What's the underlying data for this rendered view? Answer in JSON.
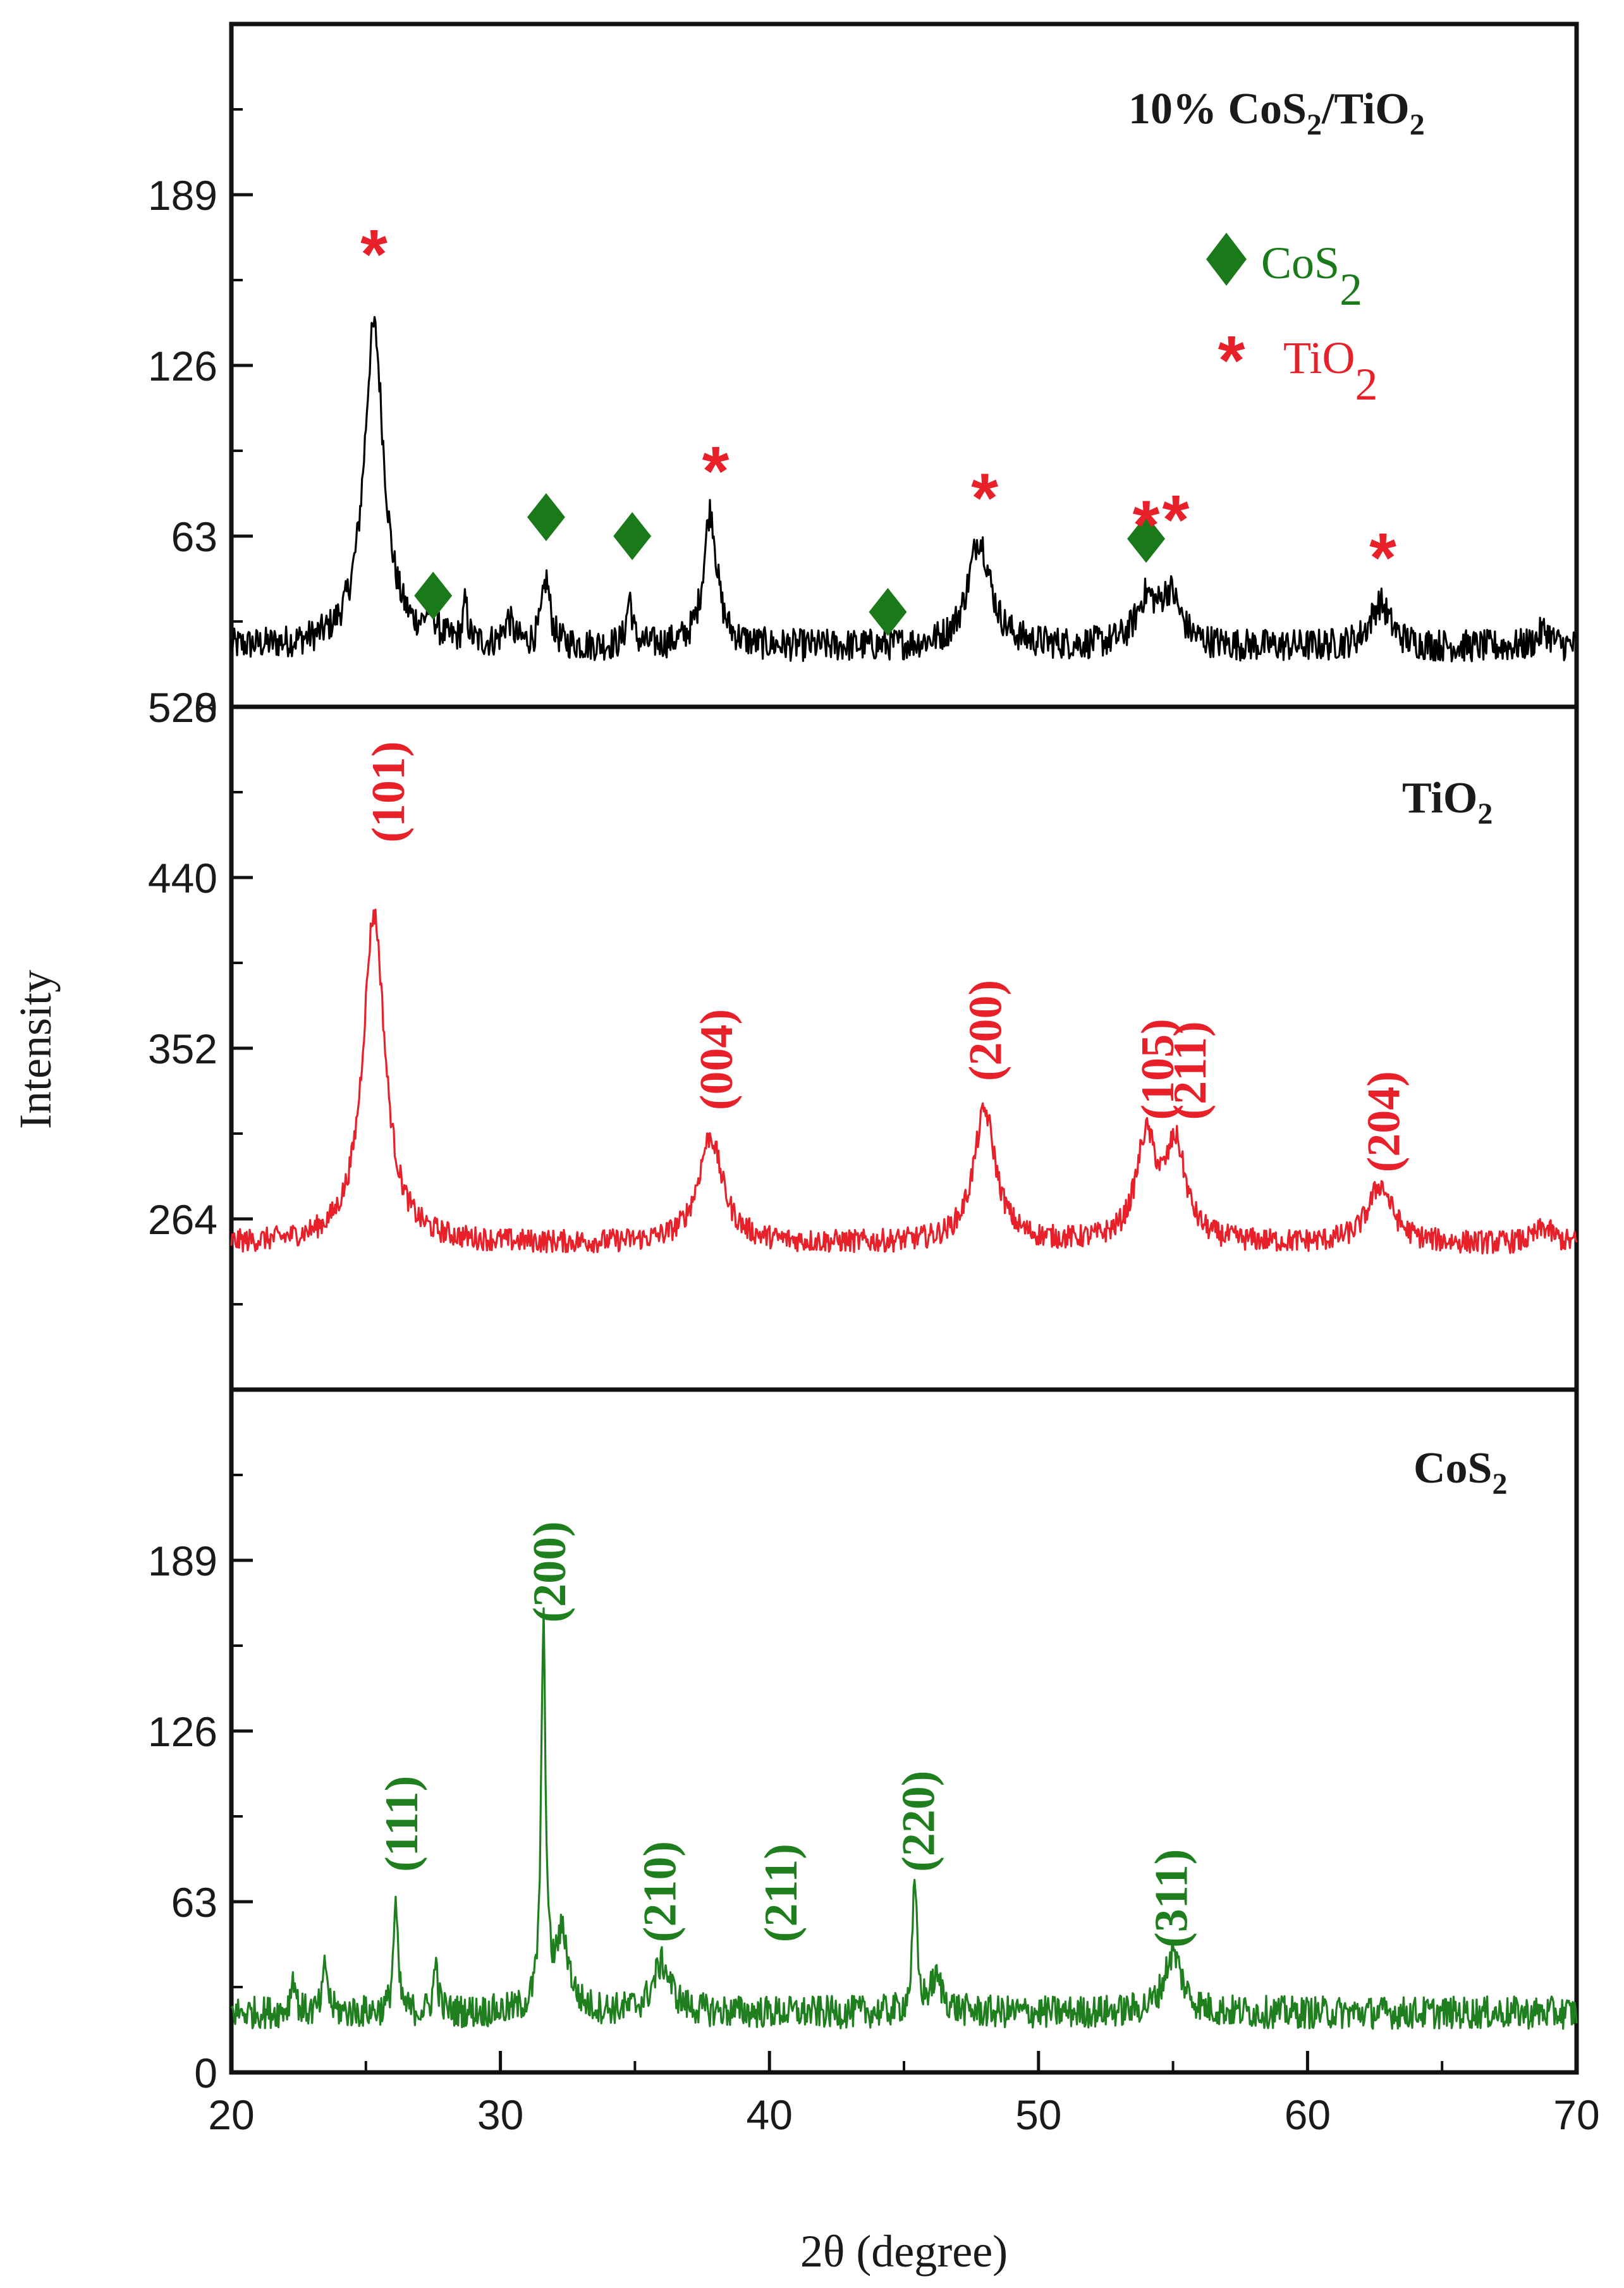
{
  "chart_data": [
    {
      "type": "line",
      "title": "10% CoS2/TiO2",
      "title_parts": {
        "a": "10% CoS",
        "sub1": "2",
        "b": "/TiO",
        "sub2": "2"
      },
      "color": "#000000",
      "xlabel": "2θ (degree)",
      "ylabel": "Intensity",
      "xlim": [
        20,
        70
      ],
      "ylim": [
        0,
        252
      ],
      "yticks": [
        0,
        63,
        126,
        189
      ],
      "baseline": 22,
      "noise": 6,
      "peaks": [
        [
          25.3,
          118,
          0.45
        ],
        [
          27.4,
          10,
          0.2
        ],
        [
          28.7,
          14,
          0.1
        ],
        [
          30.3,
          9,
          0.2
        ],
        [
          31.7,
          24,
          0.18
        ],
        [
          34.8,
          18,
          0.12
        ],
        [
          37.8,
          50,
          0.3
        ],
        [
          47.8,
          40,
          0.5
        ],
        [
          54.0,
          16,
          0.45
        ],
        [
          54.9,
          18,
          0.45
        ],
        [
          62.7,
          16,
          0.45
        ],
        [
          68.8,
          6,
          0.3
        ]
      ],
      "legend": [
        {
          "symbol": "◆",
          "label": "CoS",
          "sub": "2",
          "color": "#1a7a1a"
        },
        {
          "symbol": "*",
          "label": "TiO",
          "sub": "2",
          "color": "#e8202a"
        }
      ],
      "markers": [
        {
          "type": "star",
          "x": 25.3,
          "y": 168
        },
        {
          "type": "diamond",
          "x": 27.5,
          "y": 41
        },
        {
          "type": "diamond",
          "x": 31.7,
          "y": 70
        },
        {
          "type": "diamond",
          "x": 34.9,
          "y": 63
        },
        {
          "type": "star",
          "x": 38.0,
          "y": 88
        },
        {
          "type": "diamond",
          "x": 44.4,
          "y": 35
        },
        {
          "type": "star",
          "x": 48.0,
          "y": 78
        },
        {
          "type": "diamond",
          "x": 54.0,
          "y": 62
        },
        {
          "type": "star",
          "x": 54.0,
          "y": 68
        },
        {
          "type": "star",
          "x": 55.1,
          "y": 70
        },
        {
          "type": "star",
          "x": 62.8,
          "y": 56
        }
      ]
    },
    {
      "type": "line",
      "title": "TiO2",
      "title_parts": {
        "a": "TiO",
        "sub1": "2"
      },
      "color": "#e8202a",
      "xlim": [
        20,
        70
      ],
      "ylim": [
        176,
        528
      ],
      "yticks": [
        264,
        352,
        440,
        528
      ],
      "baseline": 251,
      "noise": 6,
      "peaks": [
        [
          25.3,
          170,
          0.5
        ],
        [
          37.8,
          55,
          0.55
        ],
        [
          48.0,
          68,
          0.5
        ],
        [
          54.0,
          52,
          0.45
        ],
        [
          55.1,
          48,
          0.45
        ],
        [
          62.7,
          30,
          0.55
        ],
        [
          68.8,
          8,
          0.4
        ]
      ],
      "planes": [
        {
          "label": "(101)",
          "x": 25.8,
          "y": 458
        },
        {
          "label": "(004)",
          "x": 38.0,
          "y": 320
        },
        {
          "label": "(200)",
          "x": 48.0,
          "y": 335
        },
        {
          "label": "(105)",
          "x": 54.4,
          "y": 315
        },
        {
          "label": "(211)",
          "x": 55.6,
          "y": 315
        },
        {
          "label": "(204)",
          "x": 62.8,
          "y": 288
        }
      ]
    },
    {
      "type": "line",
      "title": "CoS2",
      "title_parts": {
        "a": "CoS",
        "sub1": "2"
      },
      "color": "#1f7f1f",
      "xlim": [
        20,
        70
      ],
      "ylim": [
        0,
        252
      ],
      "yticks": [
        0,
        63,
        126,
        189
      ],
      "xticks": [
        20,
        30,
        40,
        50,
        60,
        70
      ],
      "baseline": 22,
      "noise": 6,
      "peaks": [
        [
          26.1,
          40,
          0.1
        ],
        [
          27.6,
          18,
          0.1
        ],
        [
          31.6,
          140,
          0.1
        ],
        [
          32.3,
          28,
          0.3
        ],
        [
          36.0,
          18,
          0.4
        ],
        [
          45.4,
          46,
          0.1
        ],
        [
          46.2,
          12,
          0.3
        ],
        [
          55.0,
          22,
          0.4
        ],
        [
          22.3,
          14,
          0.1
        ],
        [
          23.5,
          18,
          0.1
        ]
      ],
      "planes": [
        {
          "label": "(111)",
          "x": 26.3,
          "y": 74
        },
        {
          "label": "(200)",
          "x": 31.8,
          "y": 166
        },
        {
          "label": "(210)",
          "x": 35.9,
          "y": 48
        },
        {
          "label": "(211)",
          "x": 40.4,
          "y": 48
        },
        {
          "label": "(220)",
          "x": 45.5,
          "y": 74
        },
        {
          "label": "(311)",
          "x": 54.9,
          "y": 46
        }
      ]
    }
  ]
}
